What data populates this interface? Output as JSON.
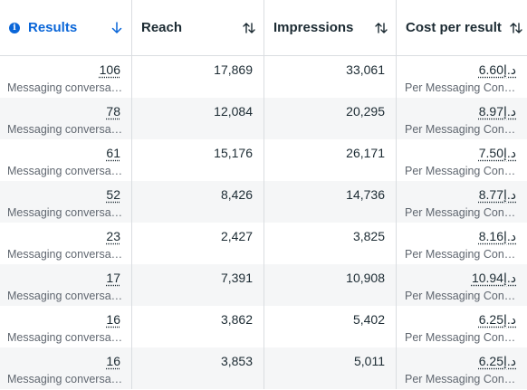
{
  "header": {
    "results": "Results",
    "reach": "Reach",
    "impressions": "Impressions",
    "cost_per_result": "Cost per result"
  },
  "rows": [
    {
      "results": "106",
      "results_sub": "Messaging conversations started",
      "reach": "17,869",
      "impressions": "33,061",
      "cost": "د.إ6.60",
      "cost_sub": "Per Messaging Conversation Started"
    },
    {
      "results": "78",
      "results_sub": "Messaging conversations started",
      "reach": "12,084",
      "impressions": "20,295",
      "cost": "د.إ8.97",
      "cost_sub": "Per Messaging Conversation Started"
    },
    {
      "results": "61",
      "results_sub": "Messaging conversations started",
      "reach": "15,176",
      "impressions": "26,171",
      "cost": "د.إ7.50",
      "cost_sub": "Per Messaging Conversation Started"
    },
    {
      "results": "52",
      "results_sub": "Messaging conversations started",
      "reach": "8,426",
      "impressions": "14,736",
      "cost": "د.إ8.77",
      "cost_sub": "Per Messaging Conversation Started"
    },
    {
      "results": "23",
      "results_sub": "Messaging conversations started",
      "reach": "2,427",
      "impressions": "3,825",
      "cost": "د.إ8.16",
      "cost_sub": "Per Messaging Conversation Started"
    },
    {
      "results": "17",
      "results_sub": "Messaging conversations started",
      "reach": "7,391",
      "impressions": "10,908",
      "cost": "د.إ10.94",
      "cost_sub": "Per Messaging Conversation Started"
    },
    {
      "results": "16",
      "results_sub": "Messaging conversations started",
      "reach": "3,862",
      "impressions": "5,402",
      "cost": "د.إ6.25",
      "cost_sub": "Per Messaging Conversation Started"
    },
    {
      "results": "16",
      "results_sub": "Messaging conversations started",
      "reach": "3,853",
      "impressions": "5,011",
      "cost": "د.إ6.25",
      "cost_sub": "Per Messaging Conversation Started"
    }
  ],
  "colors": {
    "accent": "#0a66d8",
    "alt_row": "#f5f6f7",
    "border": "#dadde1"
  }
}
